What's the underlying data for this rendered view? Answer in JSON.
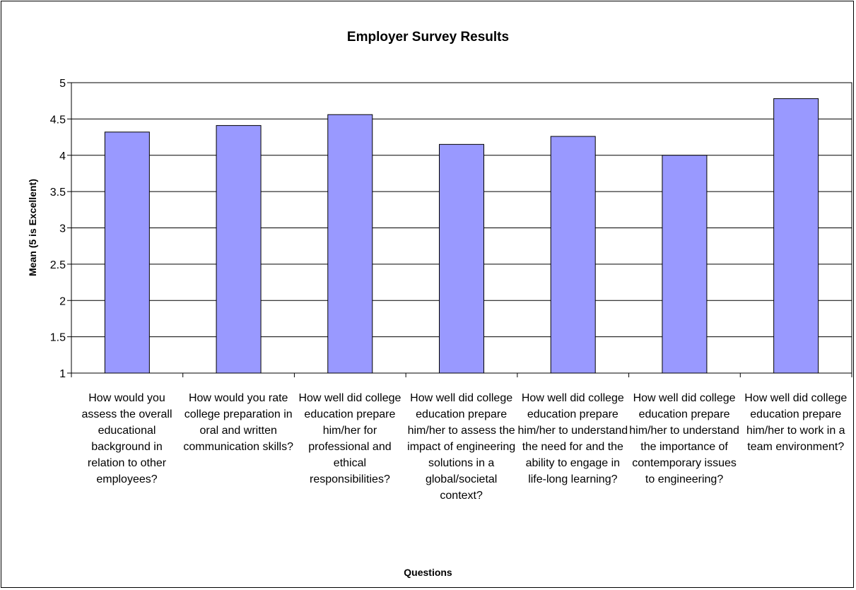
{
  "chart_data": {
    "type": "bar",
    "title": "Employer Survey Results",
    "xlabel": "Questions",
    "ylabel": "Mean (5 is Excellent)",
    "ylim": [
      1,
      5
    ],
    "yticks": [
      "1",
      "1.5",
      "2",
      "2.5",
      "3",
      "3.5",
      "4",
      "4.5",
      "5"
    ],
    "grid": true,
    "bar_color": "#9999ff",
    "categories": [
      "How would you assess the overall educational background in relation to other employees?",
      "How would you rate college preparation in oral and written communication skills?",
      "How well did college education prepare him/her for professional and ethical responsibilities?",
      "How well did college education prepare him/her to assess the impact of engineering solutions in a global/societal context?",
      "How well did college education prepare him/her to understand the need for and the ability to engage in life-long learning?",
      "How well did college education prepare him/her to understand the importance of contemporary issues to engineering?",
      "How well did college education prepare him/her to work in a team environment?"
    ],
    "values": [
      4.32,
      4.41,
      4.56,
      4.15,
      4.26,
      4.0,
      4.78
    ]
  }
}
